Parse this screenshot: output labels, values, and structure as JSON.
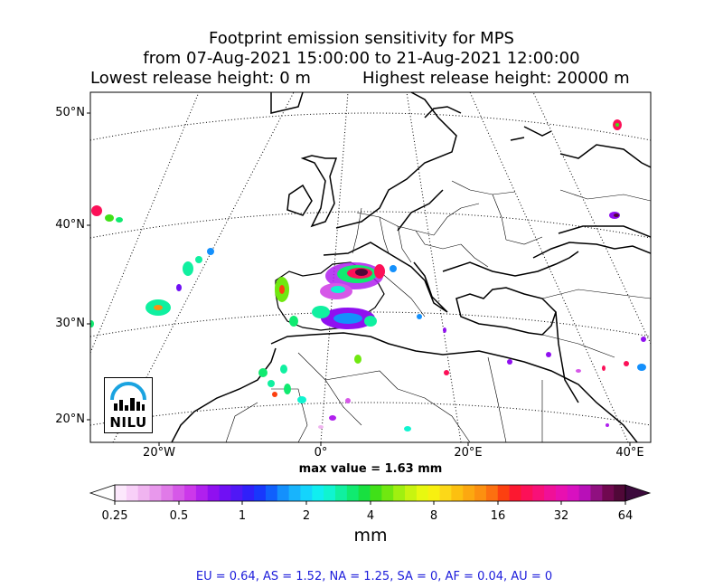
{
  "title": {
    "line1": "Footprint emission sensitivity for MPS",
    "line2": "from 07-Aug-2021 15:00:00 to 21-Aug-2021 12:00:00",
    "lowest_release": "Lowest release height: 0 m",
    "highest_release": "Highest release height: 20000 m"
  },
  "map": {
    "lat_labels": [
      "50°N",
      "40°N",
      "30°N",
      "20°N"
    ],
    "lon_labels": [
      "20°W",
      "0°",
      "20°E",
      "40°E"
    ],
    "max_value": "max value = 1.63 mm",
    "logo_text": "NILU"
  },
  "colorbar": {
    "ticks": [
      "0.25",
      "0.5",
      "1",
      "2",
      "4",
      "8",
      "16",
      "32",
      "64"
    ],
    "unit": "mm",
    "colors": [
      "#fce8fc",
      "#f8d0f8",
      "#f0b4f0",
      "#e898ec",
      "#e07ae8",
      "#d658e8",
      "#cc38ea",
      "#b020ee",
      "#9010f0",
      "#7010f4",
      "#5018f6",
      "#3020fa",
      "#1838fc",
      "#1060fc",
      "#1490fc",
      "#18b4fc",
      "#14d4fc",
      "#10eef0",
      "#10f4d0",
      "#10f0a0",
      "#10ea70",
      "#18e040",
      "#40e018",
      "#70e810",
      "#a0f010",
      "#c8f410",
      "#e8f810",
      "#f8f010",
      "#fcd818",
      "#fcc010",
      "#fca810",
      "#fc9010",
      "#fc7010",
      "#fc4010",
      "#fc1830",
      "#fc1058",
      "#f81078",
      "#f01098",
      "#e810b0",
      "#d810c0",
      "#b810b8",
      "#901080",
      "#700850",
      "#500838"
    ],
    "under_color": "#ffffff",
    "over_color": "#3c0a3c"
  },
  "stats": "EU = 0.64,  AS = 1.52,  NA = 1.25,  SA = 0,  AF = 0.04,  AU = 0"
}
